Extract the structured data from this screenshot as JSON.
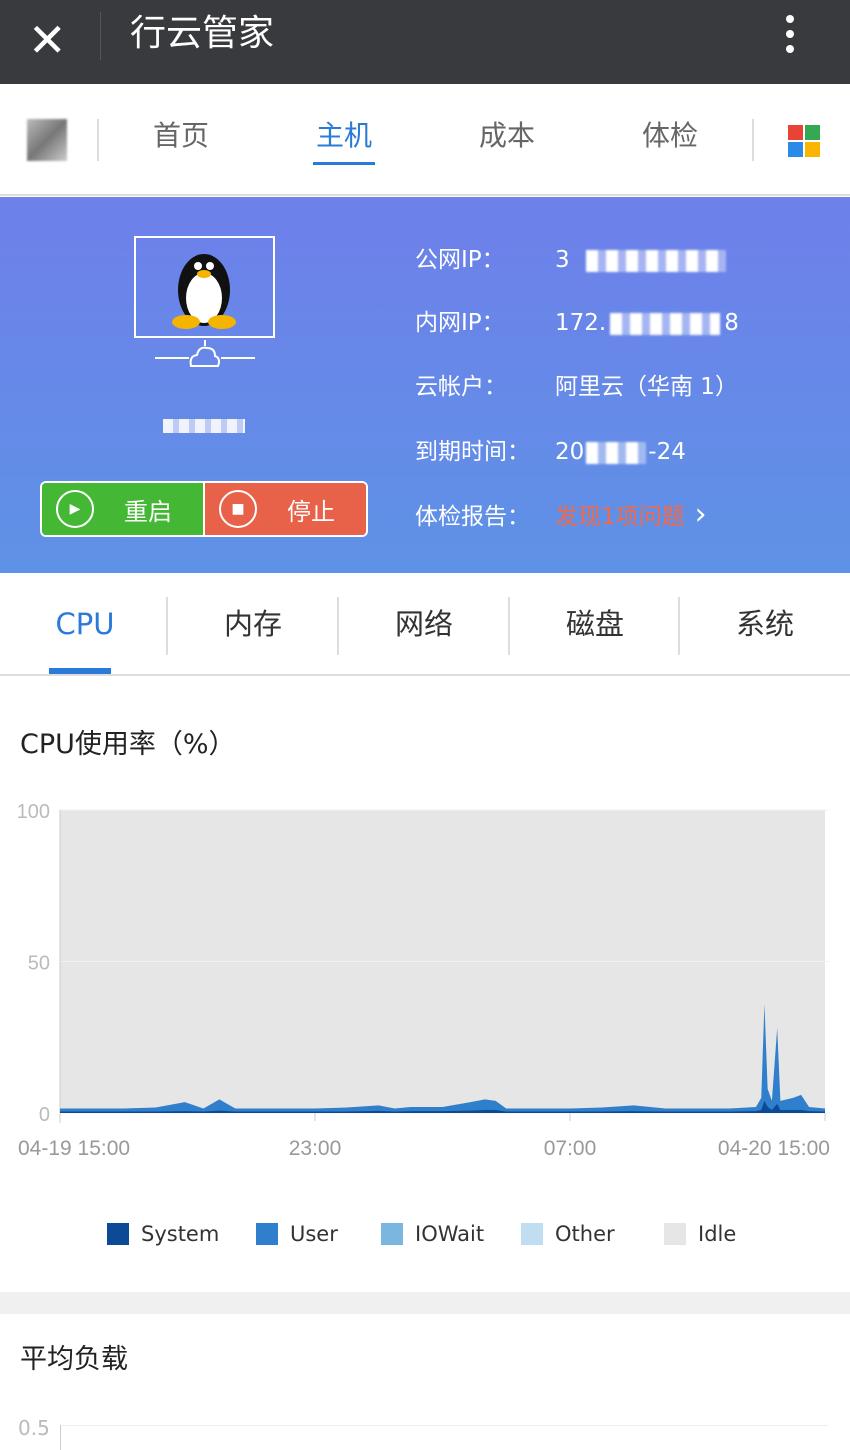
{
  "topbar": {
    "title": "行云管家",
    "close_icon": "close-icon",
    "more_icon": "more-vertical-icon"
  },
  "nav": {
    "tabs": [
      "首页",
      "主机",
      "成本",
      "体检"
    ],
    "active": 1,
    "apps_icon": "apps-grid-icon",
    "apps_colors": [
      "#e94335",
      "#34a853",
      "#2a8ae8",
      "#f9b500"
    ]
  },
  "host": {
    "os_icon": "linux-penguin-icon",
    "restart_label": "重启",
    "stop_label": "停止",
    "restart_color": "#44b835",
    "stop_color": "#e8624a",
    "fields": [
      {
        "label": "公网IP：",
        "value": "3 "
      },
      {
        "label": "内网IP：",
        "value": "172."
      },
      {
        "label": "云帐户：",
        "value": "阿里云（华南 1）"
      },
      {
        "label": "到期时间：",
        "value": "20"
      },
      {
        "label": "体检报告：",
        "value": "发现1项问题"
      }
    ],
    "private_ip_suffix": "8",
    "expiry_suffix": "-24"
  },
  "tabs": {
    "items": [
      "CPU",
      "内存",
      "网络",
      "磁盘",
      "系统"
    ],
    "active": 0
  },
  "cpu_section": {
    "title": "CPU使用率（%）"
  },
  "load_section": {
    "title": "平均负载",
    "first_tick": "0.5"
  },
  "chart_data": {
    "type": "area",
    "title": "CPU使用率（%）",
    "ylim": [
      0,
      100
    ],
    "yticks": [
      "0",
      "50",
      "100"
    ],
    "xticks": [
      "04-19 15:00",
      "23:00",
      "07:00",
      "04-20 15:00"
    ],
    "grid": true,
    "legend_position": "bottom",
    "legend": [
      {
        "name": "System",
        "color": "#0d4a96"
      },
      {
        "name": "User",
        "color": "#2f7fcc"
      },
      {
        "name": "IOWait",
        "color": "#7ab6e0"
      },
      {
        "name": "Other",
        "color": "#c0ddf2"
      },
      {
        "name": "Idle",
        "color": "#e6e6e6"
      }
    ],
    "x": [
      "04-19 15:00",
      "04-19 16:00",
      "04-19 17:00",
      "04-19 18:00",
      "04-19 18:55",
      "04-19 19:30",
      "04-19 20:00",
      "04-19 20:30",
      "04-19 21:00",
      "04-19 22:00",
      "04-19 23:00",
      "04-20 00:00",
      "04-20 01:00",
      "04-20 01:30",
      "04-20 02:00",
      "04-20 03:00",
      "04-20 03:50",
      "04-20 04:20",
      "04-20 04:40",
      "04-20 05:00",
      "04-20 06:00",
      "04-20 07:00",
      "04-20 08:00",
      "04-20 09:00",
      "04-20 10:00",
      "04-20 11:00",
      "04-20 12:00",
      "04-20 12:50",
      "04-20 13:00",
      "04-20 13:06",
      "04-20 13:12",
      "04-20 13:20",
      "04-20 13:30",
      "04-20 13:36",
      "04-20 14:00",
      "04-20 14:15",
      "04-20 14:30",
      "04-20 15:00"
    ],
    "series": [
      {
        "name": "System",
        "values": [
          0.5,
          0.5,
          0.5,
          0.5,
          0.6,
          0.5,
          0.8,
          0.5,
          0.5,
          0.5,
          0.5,
          0.5,
          0.7,
          0.5,
          0.6,
          0.6,
          0.8,
          1,
          1,
          0.5,
          0.5,
          0.5,
          0.5,
          0.6,
          0.5,
          0.5,
          0.5,
          0.6,
          1,
          4,
          2,
          1,
          3,
          1,
          1,
          1,
          0.6,
          0.5
        ]
      },
      {
        "name": "User",
        "values": [
          1,
          1,
          1,
          1.3,
          3,
          1,
          3.7,
          1,
          1,
          1,
          1,
          1.3,
          1.8,
          1,
          1.4,
          1.4,
          2.7,
          3.5,
          3,
          1,
          1,
          1,
          1.3,
          1.9,
          1,
          1,
          1,
          1.4,
          4,
          32,
          6,
          3,
          25,
          3,
          4,
          5,
          1.4,
          1
        ]
      }
    ]
  }
}
